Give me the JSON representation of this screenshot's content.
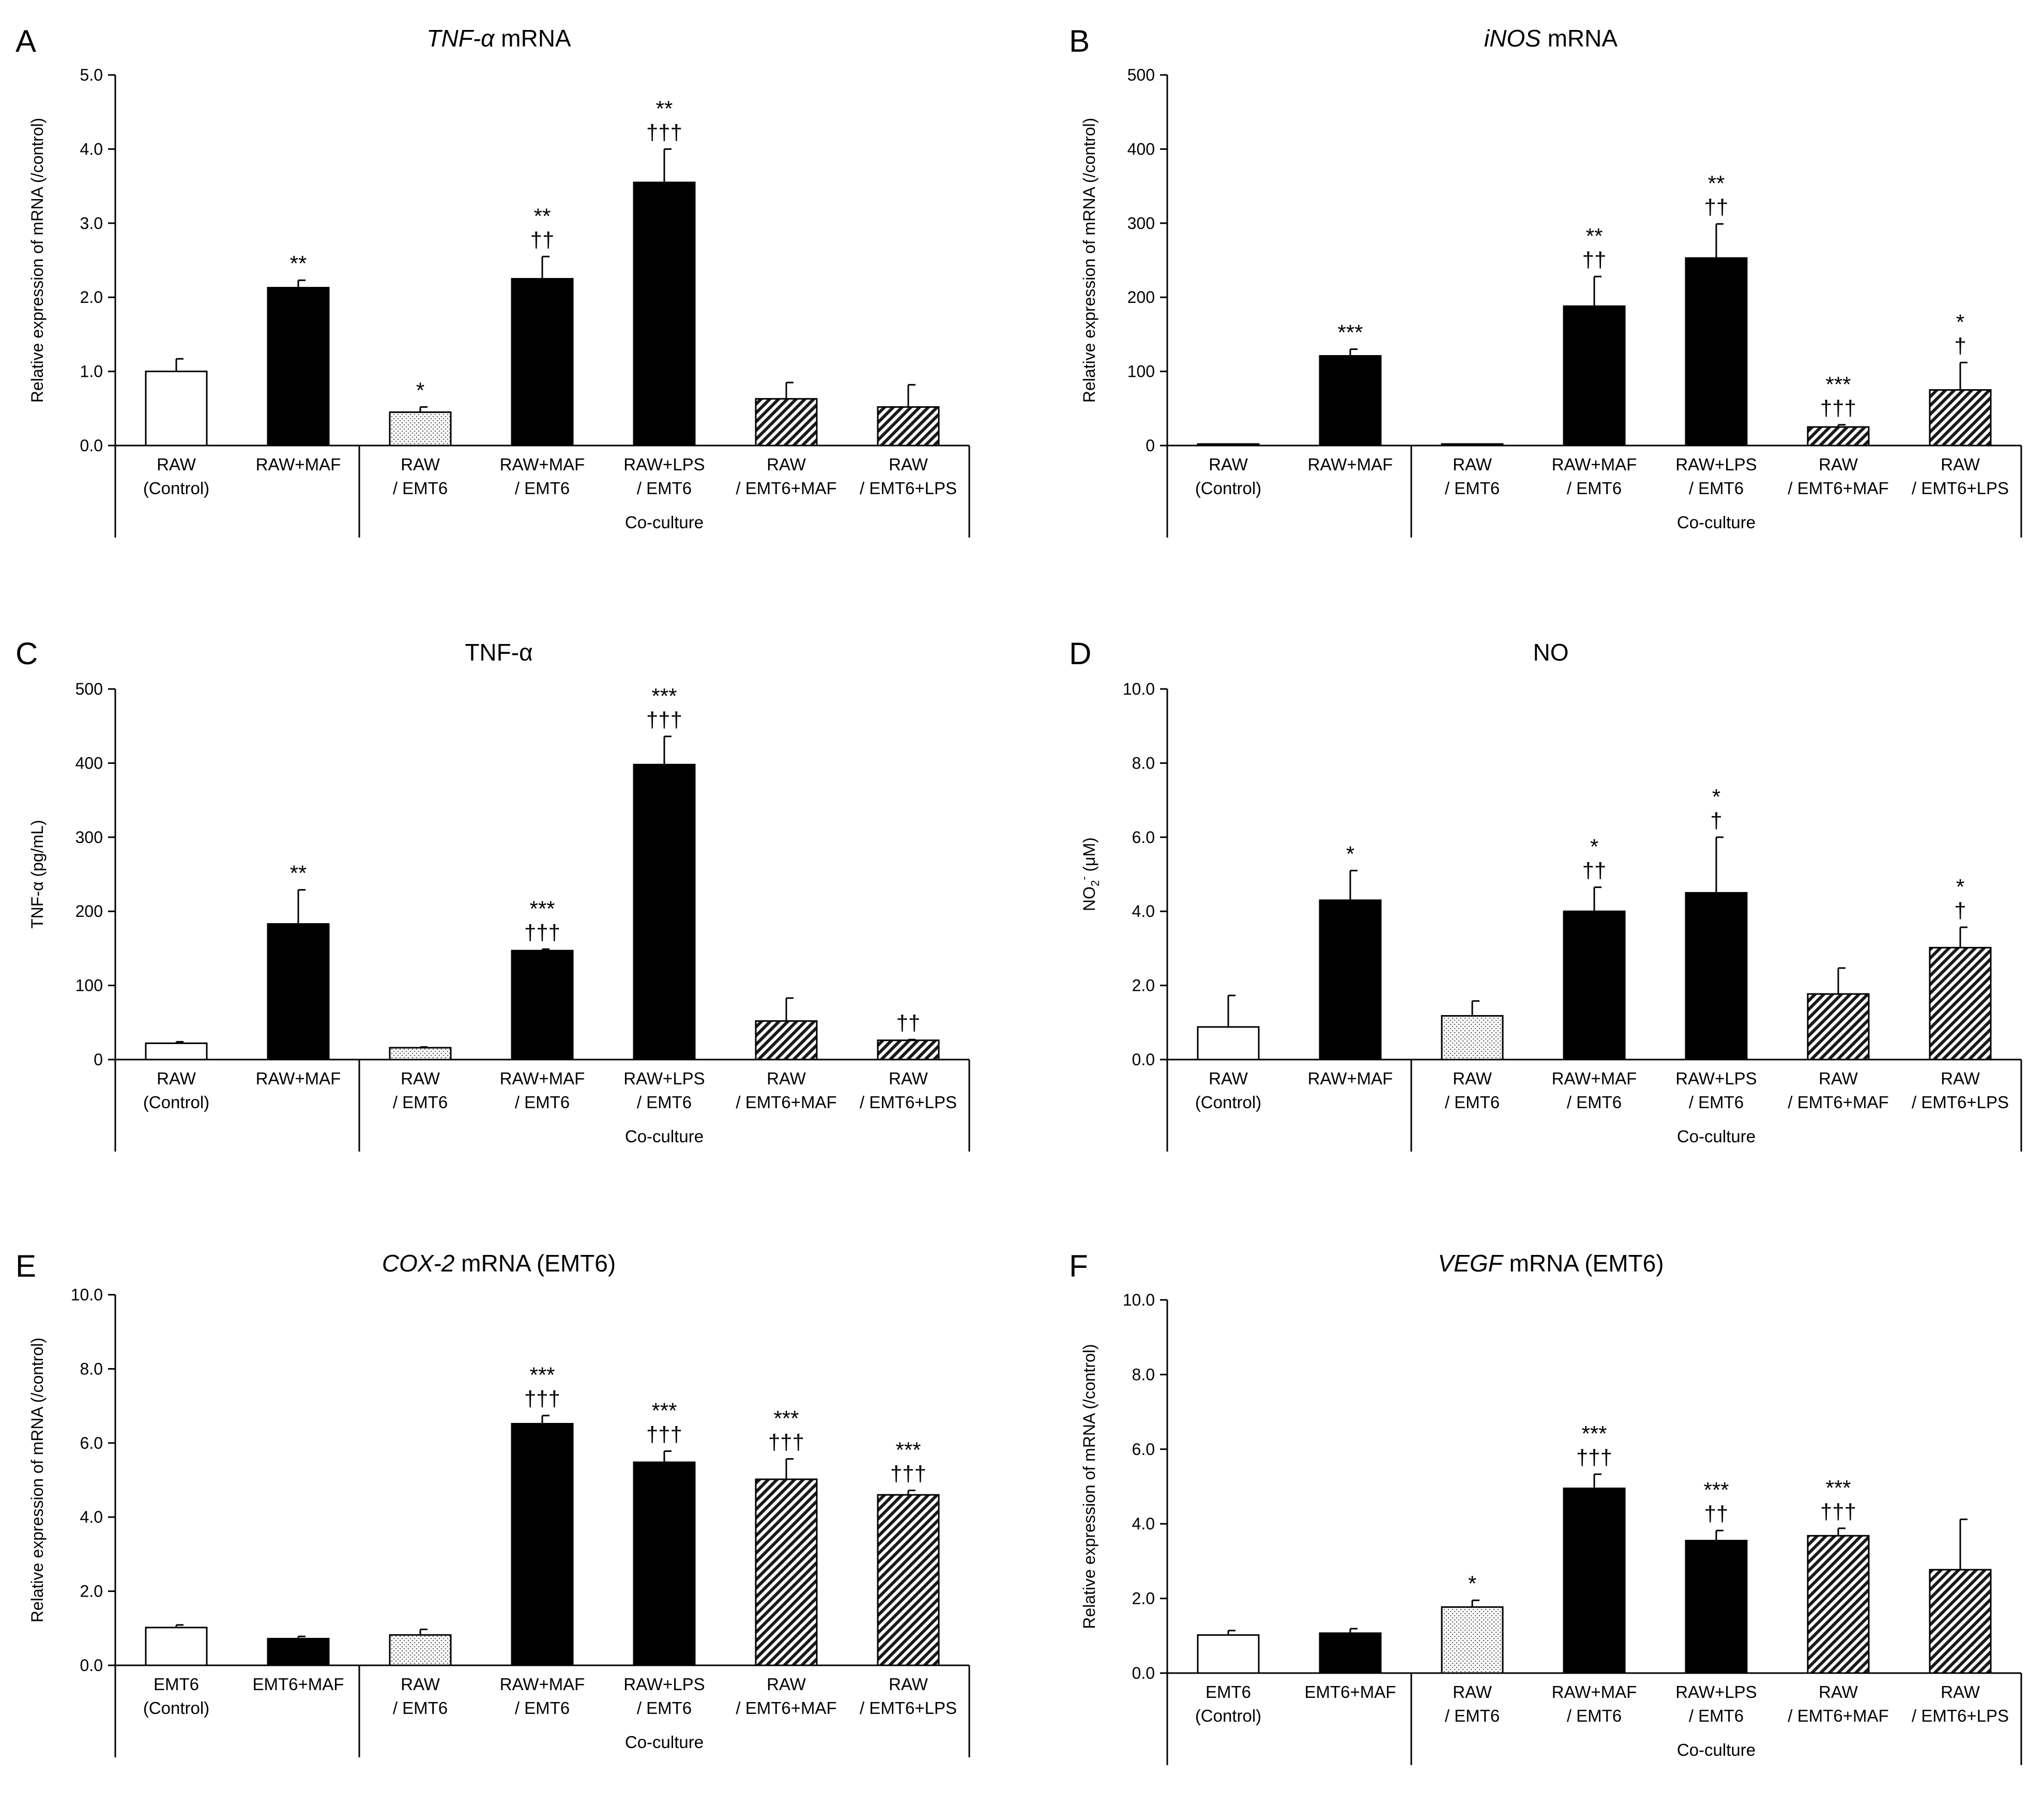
{
  "colors": {
    "axis": "#000000",
    "solid_bar": "#000000",
    "open_bar": "#ffffff",
    "dotted_fill": "#dddddd"
  },
  "chart_data": [
    {
      "panel": "A",
      "type": "bar",
      "title_italic": "TNF-α",
      "title_rest": " mRNA",
      "ylabel": "Relative expression of mRNA (/control)",
      "ylim": [
        0,
        5
      ],
      "yticks": [
        "0.0",
        "1.0",
        "2.0",
        "3.0",
        "4.0",
        "5.0"
      ],
      "categories": [
        [
          "RAW",
          "(Control)"
        ],
        [
          "RAW+MAF"
        ],
        [
          "RAW",
          "/ EMT6"
        ],
        [
          "RAW+MAF",
          "/ EMT6"
        ],
        [
          "RAW+LPS",
          "/ EMT6"
        ],
        [
          "RAW",
          "/ EMT6+MAF"
        ],
        [
          "RAW",
          "/ EMT6+LPS"
        ]
      ],
      "group_label": "Co-culture",
      "fills": [
        "open",
        "solid",
        "dotted",
        "solid",
        "solid",
        "hatched",
        "hatched"
      ],
      "values": [
        1.0,
        2.13,
        0.45,
        2.25,
        3.55,
        0.63,
        0.52
      ],
      "errors": [
        0.17,
        0.1,
        0.07,
        0.3,
        0.45,
        0.22,
        0.3
      ],
      "sig": [
        [],
        [
          "**"
        ],
        [
          "*"
        ],
        [
          "**",
          "††"
        ],
        [
          "**",
          "†††"
        ],
        [],
        []
      ]
    },
    {
      "panel": "B",
      "type": "bar",
      "title_italic": "iNOS",
      "title_rest": " mRNA",
      "ylabel": "Relative expression of mRNA (/control)",
      "ylim": [
        0,
        500
      ],
      "yticks": [
        "0",
        "100",
        "200",
        "300",
        "400",
        "500"
      ],
      "categories": [
        [
          "RAW",
          "(Control)"
        ],
        [
          "RAW+MAF"
        ],
        [
          "RAW",
          "/ EMT6"
        ],
        [
          "RAW+MAF",
          "/ EMT6"
        ],
        [
          "RAW+LPS",
          "/ EMT6"
        ],
        [
          "RAW",
          "/ EMT6+MAF"
        ],
        [
          "RAW",
          "/ EMT6+LPS"
        ]
      ],
      "group_label": "Co-culture",
      "fills": [
        "open",
        "solid",
        "dotted",
        "solid",
        "solid",
        "hatched",
        "hatched"
      ],
      "values": [
        1,
        121,
        1,
        188,
        253,
        25,
        75
      ],
      "errors": [
        0,
        9,
        0,
        40,
        46,
        3,
        37
      ],
      "sig": [
        [],
        [
          "***"
        ],
        [],
        [
          "**",
          "††"
        ],
        [
          "**",
          "††"
        ],
        [
          "***",
          "†††"
        ],
        [
          "*",
          "†"
        ]
      ]
    },
    {
      "panel": "C",
      "type": "bar",
      "title_italic": "",
      "title_rest": "TNF-α",
      "ylabel": "TNF-α (pg/mL)",
      "ylim": [
        0,
        500
      ],
      "yticks": [
        "0",
        "100",
        "200",
        "300",
        "400",
        "500"
      ],
      "categories": [
        [
          "RAW",
          "(Control)"
        ],
        [
          "RAW+MAF"
        ],
        [
          "RAW",
          "/ EMT6"
        ],
        [
          "RAW+MAF",
          "/ EMT6"
        ],
        [
          "RAW+LPS",
          "/ EMT6"
        ],
        [
          "RAW",
          "/ EMT6+MAF"
        ],
        [
          "RAW",
          "/ EMT6+LPS"
        ]
      ],
      "group_label": "Co-culture",
      "fills": [
        "open",
        "solid",
        "dotted",
        "solid",
        "solid",
        "hatched",
        "hatched"
      ],
      "values": [
        22,
        183,
        16,
        147,
        398,
        52,
        26
      ],
      "errors": [
        2,
        46,
        1,
        2,
        38,
        31,
        1
      ],
      "sig": [
        [],
        [
          "**"
        ],
        [],
        [
          "***",
          "†††"
        ],
        [
          "***",
          "†††"
        ],
        [],
        [
          "††"
        ]
      ]
    },
    {
      "panel": "D",
      "type": "bar",
      "title_italic": "",
      "title_rest": "NO",
      "ylabel": "NO2- (μM)",
      "ylabel_base": "NO",
      "ylabel_sub": "2",
      "ylabel_sup": "-",
      "ylabel_unit": " (μM)",
      "ylim": [
        0,
        10
      ],
      "yticks": [
        "0.0",
        "2.0",
        "4.0",
        "6.0",
        "8.0",
        "10.0"
      ],
      "categories": [
        [
          "RAW",
          "(Control)"
        ],
        [
          "RAW+MAF"
        ],
        [
          "RAW",
          "/ EMT6"
        ],
        [
          "RAW+MAF",
          "/ EMT6"
        ],
        [
          "RAW+LPS",
          "/ EMT6"
        ],
        [
          "RAW",
          "/ EMT6+MAF"
        ],
        [
          "RAW",
          "/ EMT6+LPS"
        ]
      ],
      "group_label": "Co-culture",
      "fills": [
        "open",
        "solid",
        "dotted",
        "solid",
        "solid",
        "hatched",
        "hatched"
      ],
      "values": [
        0.88,
        4.3,
        1.18,
        4.0,
        4.5,
        1.77,
        3.02
      ],
      "errors": [
        0.85,
        0.8,
        0.4,
        0.65,
        1.5,
        0.7,
        0.55
      ],
      "sig": [
        [],
        [
          "*"
        ],
        [],
        [
          "*",
          "††"
        ],
        [
          "*",
          "†"
        ],
        [],
        [
          "*",
          "†"
        ]
      ]
    },
    {
      "panel": "E",
      "type": "bar",
      "title_italic": "COX-2",
      "title_rest": " mRNA (EMT6)",
      "ylabel": "Relative expression of mRNA (/control)",
      "ylim": [
        0,
        10
      ],
      "yticks": [
        "0.0",
        "2.0",
        "4.0",
        "6.0",
        "8.0",
        "10.0"
      ],
      "categories": [
        [
          "EMT6",
          "(Control)"
        ],
        [
          "EMT6+MAF"
        ],
        [
          "RAW",
          "/ EMT6"
        ],
        [
          "RAW+MAF",
          "/ EMT6"
        ],
        [
          "RAW+LPS",
          "/ EMT6"
        ],
        [
          "RAW",
          "/ EMT6+MAF"
        ],
        [
          "RAW",
          "/ EMT6+LPS"
        ]
      ],
      "group_label": "Co-culture",
      "fills": [
        "open",
        "solid",
        "dotted",
        "solid",
        "solid",
        "hatched",
        "hatched"
      ],
      "values": [
        1.02,
        0.72,
        0.82,
        6.52,
        5.48,
        5.02,
        4.6
      ],
      "errors": [
        0.07,
        0.06,
        0.15,
        0.22,
        0.3,
        0.55,
        0.12
      ],
      "sig": [
        [],
        [],
        [],
        [
          "***",
          "†††"
        ],
        [
          "***",
          "†††"
        ],
        [
          "***",
          "†††"
        ],
        [
          "***",
          "†††"
        ]
      ]
    },
    {
      "panel": "F",
      "type": "bar",
      "title_italic": "VEGF",
      "title_rest": " mRNA (EMT6)",
      "ylabel": "Relative expression of mRNA (/control)",
      "ylim": [
        0,
        10
      ],
      "yticks": [
        "0.0",
        "2.0",
        "4.0",
        "6.0",
        "8.0",
        "10.0"
      ],
      "categories": [
        [
          "EMT6",
          "(Control)"
        ],
        [
          "EMT6+MAF"
        ],
        [
          "RAW",
          "/ EMT6"
        ],
        [
          "RAW+MAF",
          "/ EMT6"
        ],
        [
          "RAW+LPS",
          "/ EMT6"
        ],
        [
          "RAW",
          "/ EMT6+MAF"
        ],
        [
          "RAW",
          "/ EMT6+LPS"
        ]
      ],
      "group_label": "Co-culture",
      "fills": [
        "open",
        "solid",
        "dotted",
        "solid",
        "solid",
        "hatched",
        "hatched"
      ],
      "values": [
        1.02,
        1.07,
        1.77,
        4.95,
        3.55,
        3.68,
        2.77
      ],
      "errors": [
        0.12,
        0.12,
        0.18,
        0.38,
        0.27,
        0.2,
        1.35
      ],
      "sig": [
        [],
        [],
        [
          "*"
        ],
        [
          "***",
          "†††"
        ],
        [
          "***",
          "††"
        ],
        [
          "***",
          "†††"
        ],
        []
      ]
    }
  ]
}
